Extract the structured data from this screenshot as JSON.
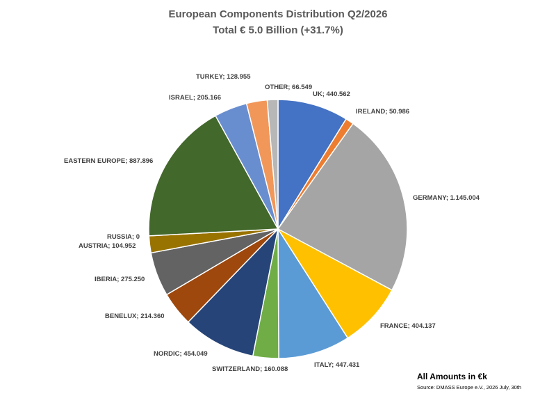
{
  "chart_data": {
    "type": "pie",
    "title": "European Components Distribution Q2/2026",
    "subtitle": "Total € 5.0 Billion (+31.7%)",
    "unit_note": "All Amounts in €k",
    "source": "Source: DMASS Europe e.V., 2026 July, 30th",
    "slices": [
      {
        "name": "UK",
        "value": 440.562,
        "display": "UK; 440.562",
        "color": "#4472C4"
      },
      {
        "name": "IRELAND",
        "value": 50.986,
        "display": "IRELAND; 50.986",
        "color": "#ED7D31"
      },
      {
        "name": "GERMANY",
        "value": 1145.004,
        "display": "GERMANY; 1.145.004",
        "color": "#A5A5A5"
      },
      {
        "name": "FRANCE",
        "value": 404.137,
        "display": "FRANCE; 404.137",
        "color": "#FFC000"
      },
      {
        "name": "ITALY",
        "value": 447.431,
        "display": "ITALY; 447.431",
        "color": "#5B9BD5"
      },
      {
        "name": "SWITZERLAND",
        "value": 160.088,
        "display": "SWITZERLAND; 160.088",
        "color": "#70AD47"
      },
      {
        "name": "NORDIC",
        "value": 454.049,
        "display": "NORDIC; 454.049",
        "color": "#264478"
      },
      {
        "name": "BENELUX",
        "value": 214.36,
        "display": "BENELUX; 214.360",
        "color": "#9E480E"
      },
      {
        "name": "IBERIA",
        "value": 275.25,
        "display": "IBERIA; 275.250",
        "color": "#636363"
      },
      {
        "name": "AUSTRIA",
        "value": 104.952,
        "display": "AUSTRIA; 104.952",
        "color": "#997300"
      },
      {
        "name": "RUSSIA",
        "value": 0,
        "display": "RUSSIA; 0",
        "color": "#255E91"
      },
      {
        "name": "EASTERN EUROPE",
        "value": 887.896,
        "display": "EASTERN EUROPE; 887.896",
        "color": "#43682B"
      },
      {
        "name": "ISRAEL",
        "value": 205.166,
        "display": "ISRAEL; 205.166",
        "color": "#698ED0"
      },
      {
        "name": "TURKEY",
        "value": 128.955,
        "display": "TURKEY; 128.955",
        "color": "#F1975A"
      },
      {
        "name": "OTHER",
        "value": 66.549,
        "display": "OTHER; 66.549",
        "color": "#B7B7B7"
      }
    ]
  }
}
